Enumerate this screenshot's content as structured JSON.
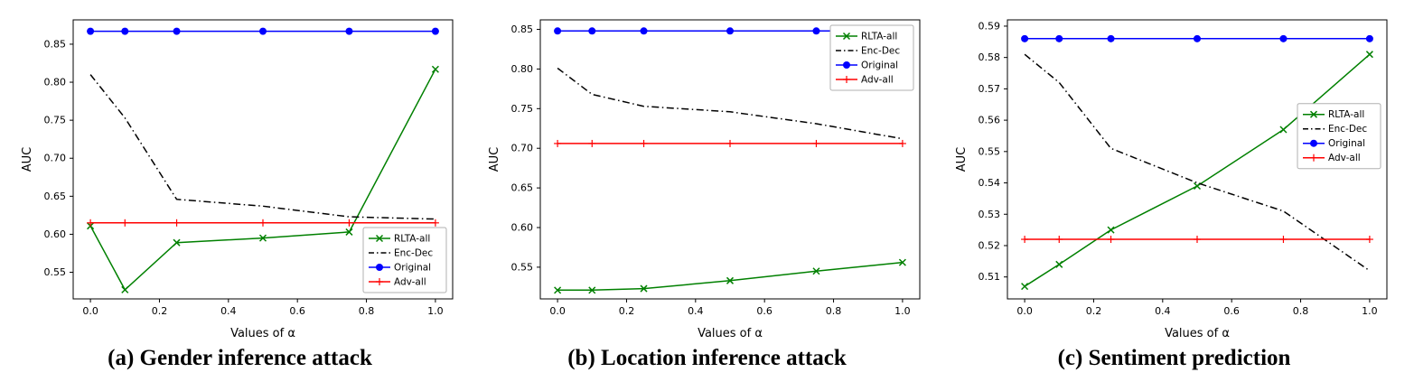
{
  "figure": {
    "captions": [
      {
        "label": "(a) Gender inference attack"
      },
      {
        "label": "(b) Location inference attack"
      },
      {
        "label": "(c) Sentiment prediction"
      }
    ]
  },
  "colors": {
    "rlta": "#008000",
    "encdec": "#000000",
    "original": "#0000ff",
    "adv": "#ff0000"
  },
  "chart_data": [
    {
      "type": "line",
      "title": "",
      "xlabel": "Values of α",
      "ylabel": "AUC",
      "x": [
        0.0,
        0.1,
        0.25,
        0.5,
        0.75,
        1.0
      ],
      "xlim": [
        -0.05,
        1.05
      ],
      "ylim": [
        0.515,
        0.882
      ],
      "xticks": [
        0.0,
        0.2,
        0.4,
        0.6,
        0.8,
        1.0
      ],
      "yticks": [
        0.55,
        0.6,
        0.65,
        0.7,
        0.75,
        0.8,
        0.85
      ],
      "grid": false,
      "legend_position": "lower right",
      "series": [
        {
          "name": "RLTA-all",
          "color": "#008000",
          "style": "solid",
          "marker": "x",
          "values": [
            0.611,
            0.527,
            0.589,
            0.595,
            0.603,
            0.817
          ]
        },
        {
          "name": "Enc-Dec",
          "color": "#000000",
          "style": "dashdot",
          "marker": null,
          "values": [
            0.81,
            0.753,
            0.646,
            0.637,
            0.623,
            0.62
          ]
        },
        {
          "name": "Original",
          "color": "#0000ff",
          "style": "solid",
          "marker": "o",
          "values": [
            0.867,
            0.867,
            0.867,
            0.867,
            0.867,
            0.867
          ]
        },
        {
          "name": "Adv-all",
          "color": "#ff0000",
          "style": "solid",
          "marker": "+",
          "values": [
            0.615,
            0.615,
            0.615,
            0.615,
            0.615,
            0.615
          ]
        }
      ]
    },
    {
      "type": "line",
      "title": "",
      "xlabel": "Values of α",
      "ylabel": "AUC",
      "x": [
        0.0,
        0.1,
        0.25,
        0.5,
        0.75,
        1.0
      ],
      "xlim": [
        -0.05,
        1.05
      ],
      "ylim": [
        0.51,
        0.862
      ],
      "xticks": [
        0.0,
        0.2,
        0.4,
        0.6,
        0.8,
        1.0
      ],
      "yticks": [
        0.55,
        0.6,
        0.65,
        0.7,
        0.75,
        0.8,
        0.85
      ],
      "grid": false,
      "legend_position": "upper right",
      "series": [
        {
          "name": "RLTA-all",
          "color": "#008000",
          "style": "solid",
          "marker": "x",
          "values": [
            0.521,
            0.521,
            0.523,
            0.533,
            0.545,
            0.556
          ]
        },
        {
          "name": "Enc-Dec",
          "color": "#000000",
          "style": "dashdot",
          "marker": null,
          "values": [
            0.801,
            0.768,
            0.753,
            0.746,
            0.731,
            0.712
          ]
        },
        {
          "name": "Original",
          "color": "#0000ff",
          "style": "solid",
          "marker": "o",
          "values": [
            0.848,
            0.848,
            0.848,
            0.848,
            0.848,
            0.848
          ]
        },
        {
          "name": "Adv-all",
          "color": "#ff0000",
          "style": "solid",
          "marker": "+",
          "values": [
            0.706,
            0.706,
            0.706,
            0.706,
            0.706,
            0.706
          ]
        }
      ]
    },
    {
      "type": "line",
      "title": "",
      "xlabel": "Values of α",
      "ylabel": "AUC",
      "x": [
        0.0,
        0.1,
        0.25,
        0.5,
        0.75,
        1.0
      ],
      "xlim": [
        -0.05,
        1.05
      ],
      "ylim": [
        0.503,
        0.592
      ],
      "xticks": [
        0.0,
        0.2,
        0.4,
        0.6,
        0.8,
        1.0
      ],
      "yticks": [
        0.51,
        0.52,
        0.53,
        0.54,
        0.55,
        0.56,
        0.57,
        0.58,
        0.59
      ],
      "grid": false,
      "legend_position": "center right",
      "series": [
        {
          "name": "RLTA-all",
          "color": "#008000",
          "style": "solid",
          "marker": "x",
          "values": [
            0.507,
            0.514,
            0.525,
            0.539,
            0.557,
            0.581
          ]
        },
        {
          "name": "Enc-Dec",
          "color": "#000000",
          "style": "dashdot",
          "marker": null,
          "values": [
            0.581,
            0.572,
            0.551,
            0.54,
            0.531,
            0.512
          ]
        },
        {
          "name": "Original",
          "color": "#0000ff",
          "style": "solid",
          "marker": "o",
          "values": [
            0.586,
            0.586,
            0.586,
            0.586,
            0.586,
            0.586
          ]
        },
        {
          "name": "Adv-all",
          "color": "#ff0000",
          "style": "solid",
          "marker": "+",
          "values": [
            0.522,
            0.522,
            0.522,
            0.522,
            0.522,
            0.522
          ]
        }
      ]
    }
  ]
}
